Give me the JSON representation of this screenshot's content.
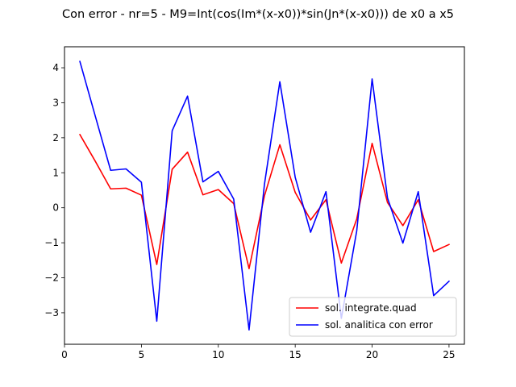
{
  "chart_data": {
    "type": "line",
    "title": "Con error - nr=5 - M9=Int(cos(Im*(x-x0))*sin(Jn*(x-x0))) de x0 a x5",
    "xlabel": "",
    "ylabel": "",
    "xlim": [
      0,
      26
    ],
    "ylim": [
      -3.9,
      4.6
    ],
    "xticks": [
      0,
      5,
      10,
      15,
      20,
      25
    ],
    "yticks": [
      -3,
      -2,
      -1,
      0,
      1,
      2,
      3,
      4
    ],
    "grid": false,
    "legend_position": "lower-right",
    "x": [
      1,
      2,
      3,
      4,
      5,
      6,
      7,
      8,
      9,
      10,
      11,
      12,
      13,
      14,
      15,
      16,
      17,
      18,
      19,
      20,
      21,
      22,
      23,
      24,
      25
    ],
    "series": [
      {
        "name": "sol. integrate.quad",
        "color": "#ff0000",
        "values": [
          2.09,
          1.33,
          0.54,
          0.56,
          0.36,
          -1.62,
          1.1,
          1.59,
          0.37,
          0.52,
          0.12,
          -1.74,
          0.34,
          1.8,
          0.44,
          -0.35,
          0.23,
          -1.58,
          -0.32,
          1.84,
          0.15,
          -0.51,
          0.23,
          -1.25,
          -1.05
        ]
      },
      {
        "name": "sol. analitica con error",
        "color": "#0000ff",
        "values": [
          4.18,
          2.62,
          1.07,
          1.11,
          0.73,
          -3.24,
          2.2,
          3.19,
          0.74,
          1.04,
          0.25,
          -3.49,
          0.67,
          3.6,
          0.87,
          -0.7,
          0.46,
          -3.16,
          -0.66,
          3.68,
          0.28,
          -1.01,
          0.46,
          -2.51,
          -2.1
        ]
      }
    ]
  }
}
